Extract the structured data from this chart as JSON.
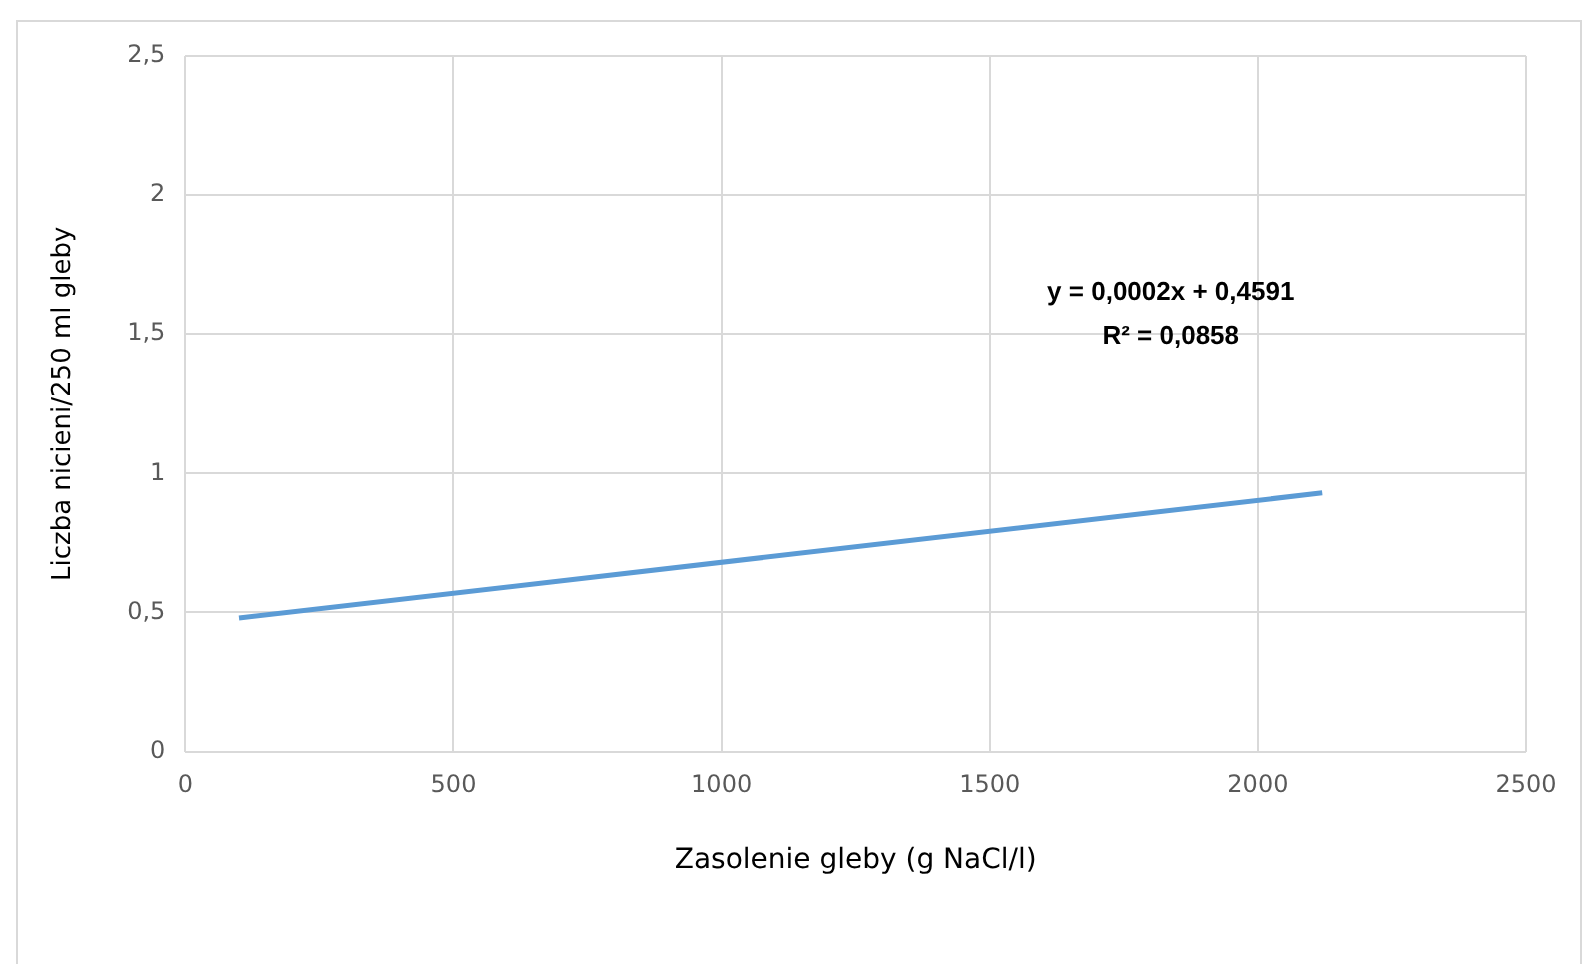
{
  "chart_data": {
    "type": "line",
    "xlabel": "Zasolenie gleby (g NaCl/l)",
    "ylabel": "Liczba nicieni/250 ml gleby",
    "annotations": [
      "y = 0,0002x + 0,4591",
      "R² = 0,0858"
    ],
    "series": [
      {
        "color": "#5b9bd5",
        "x": [
          100,
          2120
        ],
        "values": [
          0.48,
          0.93
        ]
      }
    ],
    "xlim": [
      0,
      2500
    ],
    "xticks": [
      0,
      500,
      1000,
      1500,
      2000,
      2500
    ],
    "ylim": [
      0,
      2.5
    ],
    "yticks": [
      0,
      {
        "value": 0.5,
        "label": "0,5"
      },
      1,
      {
        "value": 1.5,
        "label": "1,5"
      },
      2,
      {
        "value": 2.5,
        "label": "2,5"
      }
    ],
    "grid": true,
    "legend": false,
    "marker": "none",
    "line_style": "solid"
  }
}
